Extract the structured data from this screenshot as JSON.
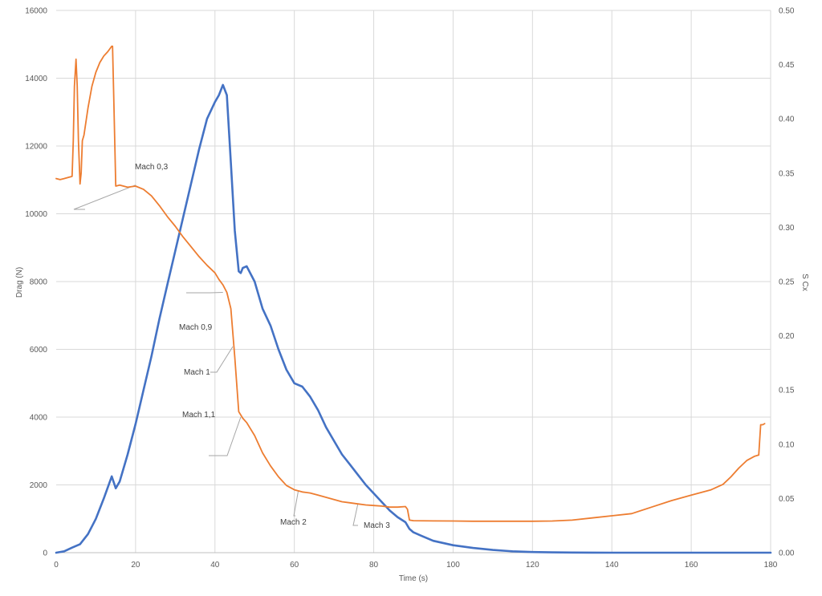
{
  "chart_data": {
    "type": "line",
    "title": "",
    "xlabel": "Time (s)",
    "ylabel": "Drag (N)",
    "y2label": "S Cx",
    "xlim": [
      0,
      180
    ],
    "ylim": [
      0,
      16000
    ],
    "y2lim": [
      0,
      0.5
    ],
    "x_ticks": [
      "0",
      "20",
      "40",
      "60",
      "80",
      "100",
      "120",
      "140",
      "160",
      "180"
    ],
    "y_ticks": [
      "0",
      "2000",
      "4000",
      "6000",
      "8000",
      "10000",
      "12000",
      "14000",
      "16000"
    ],
    "y2_ticks": [
      "0.00",
      "0.05",
      "0.10",
      "0.15",
      "0.20",
      "0.25",
      "0.30",
      "0.35",
      "0.40",
      "0.45",
      "0.50"
    ],
    "grid": true,
    "legend": "none",
    "series": [
      {
        "color": "#4472C4",
        "axis": "left",
        "x": [
          0,
          2,
          4,
          6,
          8,
          10,
          12,
          14,
          15,
          16,
          18,
          20,
          22,
          24,
          26,
          28,
          30,
          32,
          34,
          36,
          38,
          40,
          41,
          42,
          43,
          44,
          45,
          46,
          46.5,
          47,
          48,
          50,
          52,
          54,
          56,
          58,
          60,
          62,
          64,
          66,
          68,
          70,
          72,
          74,
          76,
          78,
          80,
          82,
          84,
          86,
          88,
          89,
          90,
          92,
          95,
          100,
          105,
          110,
          115,
          120,
          125,
          130,
          135,
          140,
          150,
          160,
          170,
          180
        ],
        "y": [
          0,
          40,
          150,
          250,
          550,
          1000,
          1600,
          2250,
          1900,
          2100,
          2900,
          3800,
          4800,
          5800,
          6900,
          7900,
          8900,
          9900,
          10900,
          11900,
          12800,
          13300,
          13500,
          13800,
          13500,
          11500,
          9500,
          8300,
          8250,
          8400,
          8450,
          8000,
          7200,
          6700,
          6000,
          5400,
          5000,
          4900,
          4600,
          4200,
          3700,
          3300,
          2900,
          2600,
          2300,
          2000,
          1750,
          1500,
          1250,
          1050,
          900,
          700,
          600,
          500,
          350,
          220,
          140,
          80,
          40,
          20,
          10,
          5,
          3,
          0,
          0,
          0,
          0,
          0
        ]
      },
      {
        "color": "#ED7D31",
        "axis": "right",
        "x": [
          0,
          1,
          2,
          3,
          4,
          4.3,
          4.6,
          5,
          5.3,
          5.6,
          6,
          6.3,
          6.6,
          7,
          8,
          9,
          10,
          11,
          12,
          13,
          14,
          14.2,
          14.5,
          15,
          16,
          18,
          20,
          22,
          24,
          26,
          28,
          30,
          32,
          34,
          36,
          38,
          40,
          41,
          42,
          43,
          44,
          45,
          46,
          47,
          48,
          50,
          52,
          54,
          56,
          58,
          60,
          62,
          64,
          66,
          68,
          70,
          72,
          74,
          76,
          78,
          80,
          82,
          84,
          86,
          88,
          88.5,
          89,
          90,
          95,
          100,
          105,
          110,
          115,
          120,
          125,
          130,
          135,
          140,
          145,
          150,
          155,
          160,
          165,
          168,
          170,
          172,
          174,
          176,
          177,
          177.5,
          178,
          178.5
        ],
        "y": [
          0.345,
          0.344,
          0.345,
          0.346,
          0.347,
          0.38,
          0.43,
          0.455,
          0.43,
          0.38,
          0.34,
          0.35,
          0.38,
          0.385,
          0.41,
          0.43,
          0.443,
          0.452,
          0.458,
          0.462,
          0.467,
          0.467,
          0.42,
          0.338,
          0.339,
          0.337,
          0.338,
          0.335,
          0.329,
          0.32,
          0.31,
          0.301,
          0.291,
          0.282,
          0.273,
          0.265,
          0.258,
          0.252,
          0.247,
          0.24,
          0.225,
          0.18,
          0.13,
          0.124,
          0.12,
          0.108,
          0.092,
          0.08,
          0.07,
          0.062,
          0.058,
          0.056,
          0.055,
          0.053,
          0.051,
          0.049,
          0.047,
          0.046,
          0.045,
          0.044,
          0.0435,
          0.043,
          0.042,
          0.042,
          0.0425,
          0.04,
          0.03,
          0.0295,
          0.0293,
          0.0292,
          0.029,
          0.029,
          0.029,
          0.029,
          0.0292,
          0.03,
          0.032,
          0.034,
          0.036,
          0.042,
          0.048,
          0.053,
          0.058,
          0.063,
          0.07,
          0.078,
          0.085,
          0.089,
          0.09,
          0.118,
          0.118,
          0.119
        ]
      }
    ],
    "annotations": [
      {
        "text": "Mach 0,3",
        "at": [
          20,
          0.339
        ]
      },
      {
        "text": "Mach 0,9",
        "at": [
          42,
          0.24
        ]
      },
      {
        "text": "Mach 1",
        "at": [
          44.5,
          0.19
        ]
      },
      {
        "text": "Mach 1,1",
        "at": [
          46.5,
          0.125
        ]
      },
      {
        "text": "Mach 2",
        "at": [
          61,
          0.057
        ]
      },
      {
        "text": "Mach 3",
        "at": [
          76,
          0.045
        ]
      }
    ]
  }
}
